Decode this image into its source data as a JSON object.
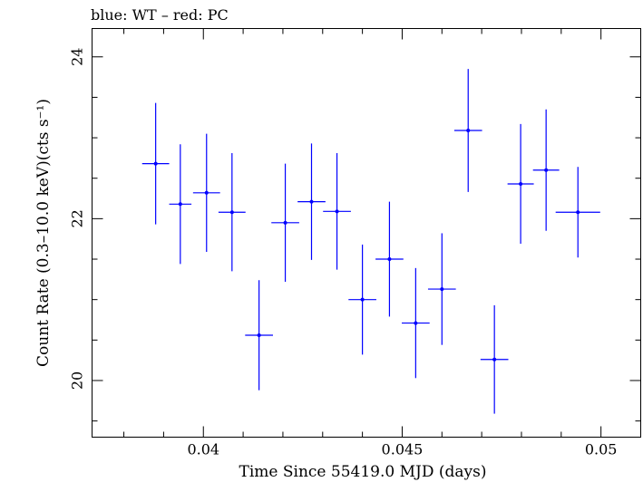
{
  "chart_data": {
    "type": "scatter",
    "title": "blue: WT – red: PC",
    "xlabel": "Time Since 55419.0 MJD (days)",
    "ylabel": "Count Rate (0.3–10.0 keV)(cts s⁻¹)",
    "xlim": [
      0.0372,
      0.051
    ],
    "ylim": [
      19.3,
      24.35
    ],
    "x_ticks": [
      {
        "value": 0.04,
        "label": "0.04"
      },
      {
        "value": 0.045,
        "label": "0.045"
      },
      {
        "value": 0.05,
        "label": "0.05"
      }
    ],
    "x_minor_step": 0.001,
    "y_ticks": [
      {
        "value": 20,
        "label": "20"
      },
      {
        "value": 22,
        "label": "22"
      },
      {
        "value": 24,
        "label": "24"
      }
    ],
    "y_minor_step": 0.5,
    "grid": false,
    "series": [
      {
        "color": "#0000ff",
        "points": [
          {
            "x": 0.0388,
            "xerr": 0.00034,
            "y": 22.68,
            "yerr": 0.75
          },
          {
            "x": 0.03942,
            "xerr": 0.00028,
            "y": 22.18,
            "yerr": 0.74
          },
          {
            "x": 0.04008,
            "xerr": 0.00034,
            "y": 22.32,
            "yerr": 0.73
          },
          {
            "x": 0.04072,
            "xerr": 0.00034,
            "y": 22.08,
            "yerr": 0.73
          },
          {
            "x": 0.0414,
            "xerr": 0.00035,
            "y": 20.56,
            "yerr": 0.68
          },
          {
            "x": 0.04206,
            "xerr": 0.00035,
            "y": 21.95,
            "yerr": 0.73
          },
          {
            "x": 0.04272,
            "xerr": 0.00035,
            "y": 22.21,
            "yerr": 0.72
          },
          {
            "x": 0.04336,
            "xerr": 0.00035,
            "y": 22.09,
            "yerr": 0.72
          },
          {
            "x": 0.044,
            "xerr": 0.00035,
            "y": 21.0,
            "yerr": 0.68
          },
          {
            "x": 0.04468,
            "xerr": 0.00035,
            "y": 21.5,
            "yerr": 0.71
          },
          {
            "x": 0.04534,
            "xerr": 0.00035,
            "y": 20.71,
            "yerr": 0.68
          },
          {
            "x": 0.046,
            "xerr": 0.00035,
            "y": 21.13,
            "yerr": 0.69
          },
          {
            "x": 0.04666,
            "xerr": 0.00035,
            "y": 23.09,
            "yerr": 0.76
          },
          {
            "x": 0.04732,
            "xerr": 0.00035,
            "y": 20.26,
            "yerr": 0.67
          },
          {
            "x": 0.04798,
            "xerr": 0.00033,
            "y": 22.43,
            "yerr": 0.74
          },
          {
            "x": 0.04862,
            "xerr": 0.00033,
            "y": 22.6,
            "yerr": 0.75
          },
          {
            "x": 0.04942,
            "xerr": 0.00056,
            "y": 22.08,
            "yerr": 0.56
          }
        ]
      }
    ]
  }
}
